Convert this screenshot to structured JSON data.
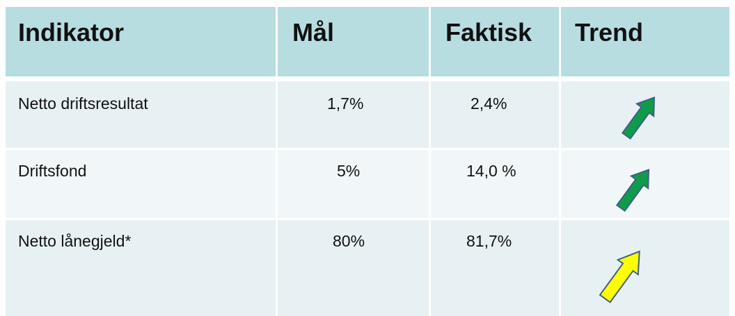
{
  "table": {
    "header": [
      "Indikator",
      "Mål",
      "Faktisk",
      "Trend"
    ],
    "rows": [
      [
        "Netto driftsresultat",
        "1,7%",
        "2,4%"
      ],
      [
        "Driftsfond",
        "5%",
        "14,0 %"
      ],
      [
        "Netto lånegjeld*",
        "80%",
        "81,7%"
      ]
    ]
  }
}
